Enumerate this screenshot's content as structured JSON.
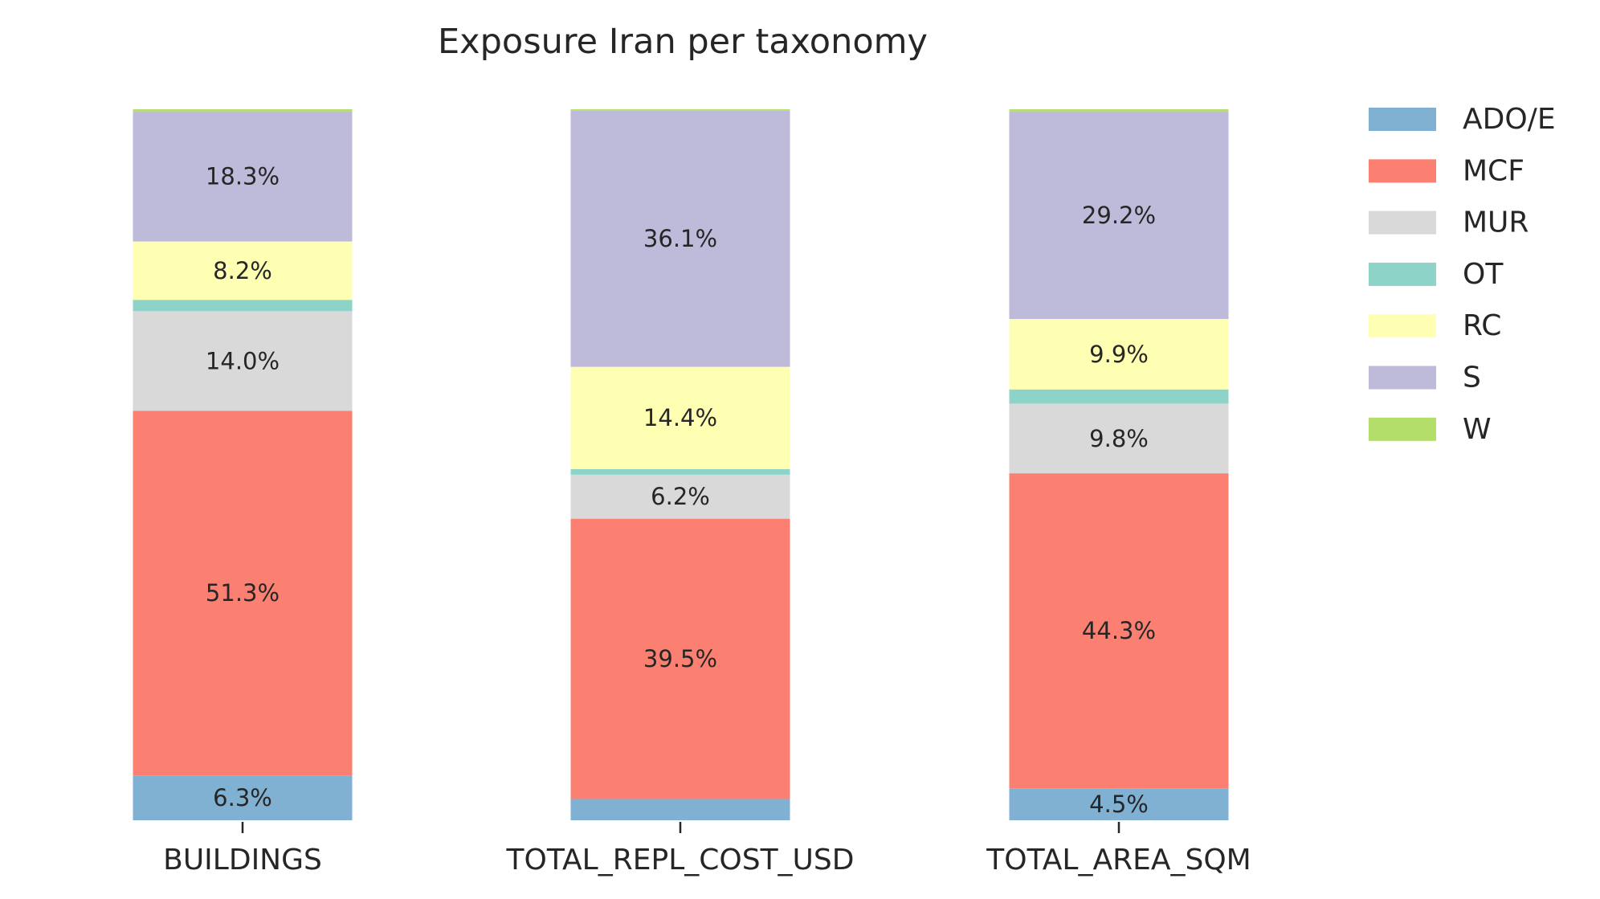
{
  "chart_data": {
    "type": "bar",
    "stacked": true,
    "normalized": true,
    "title": "Exposure Iran per taxonomy",
    "xlabel": "",
    "ylabel": "",
    "ylim": [
      0,
      100
    ],
    "grid": false,
    "legend_position": "right",
    "categories": [
      "BUILDINGS",
      "TOTAL_REPL_COST_USD",
      "TOTAL_AREA_SQM"
    ],
    "series": [
      {
        "name": "ADO/E",
        "color": "#80b1d3",
        "values": [
          6.3,
          3.0,
          4.5
        ],
        "labels": [
          "6.3%",
          "",
          "4.5%"
        ]
      },
      {
        "name": "MCF",
        "color": "#fb8072",
        "values": [
          51.3,
          39.5,
          44.3
        ],
        "labels": [
          "51.3%",
          "39.5%",
          "44.3%"
        ]
      },
      {
        "name": "MUR",
        "color": "#d9d9d9",
        "values": [
          14.0,
          6.2,
          9.8
        ],
        "labels": [
          "14.0%",
          "6.2%",
          "9.8%"
        ]
      },
      {
        "name": "OT",
        "color": "#8dd3c7",
        "values": [
          1.6,
          0.8,
          2.0
        ],
        "labels": [
          "",
          "",
          ""
        ]
      },
      {
        "name": "RC",
        "color": "#ffffb3",
        "values": [
          8.2,
          14.4,
          9.9
        ],
        "labels": [
          "8.2%",
          "14.4%",
          "9.9%"
        ]
      },
      {
        "name": "S",
        "color": "#bebada",
        "values": [
          18.3,
          36.1,
          29.2
        ],
        "labels": [
          "18.3%",
          "36.1%",
          "29.2%"
        ]
      },
      {
        "name": "W",
        "color": "#b3de69",
        "values": [
          0.3,
          0.2,
          0.3
        ],
        "labels": [
          "",
          "",
          ""
        ]
      }
    ]
  }
}
